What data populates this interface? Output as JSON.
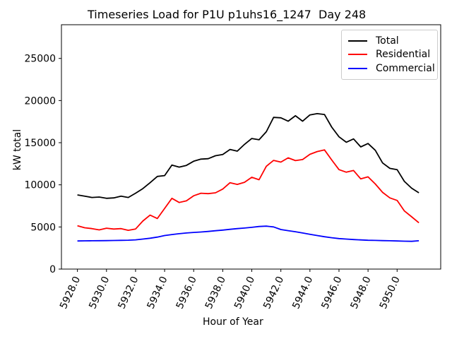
{
  "chart_data": {
    "type": "line",
    "title": "Timeseries Load for P1U p1uhs16_1247  Day 248",
    "xlabel": "Hour of Year",
    "ylabel": "kW total",
    "xlim": [
      5926.9,
      5953.0
    ],
    "ylim": [
      0,
      29000
    ],
    "grid": false,
    "legend_position": "upper right",
    "axis_color": "#000000",
    "background_color": "#ffffff",
    "legend_border_color": "#cccccc",
    "x_tick_labels": [
      "5928.0",
      "5930.0",
      "5932.0",
      "5934.0",
      "5936.0",
      "5938.0",
      "5940.0",
      "5942.0",
      "5944.0",
      "5946.0",
      "5948.0",
      "5950.0"
    ],
    "x_tick_values": [
      5928,
      5930,
      5932,
      5934,
      5936,
      5938,
      5940,
      5942,
      5944,
      5946,
      5948,
      5950
    ],
    "y_tick_labels": [
      "0",
      "5000",
      "10000",
      "15000",
      "20000",
      "25000"
    ],
    "y_tick_values": [
      0,
      5000,
      10000,
      15000,
      20000,
      25000
    ],
    "x": [
      5928.0,
      5928.5,
      5929.0,
      5929.5,
      5930.0,
      5930.5,
      5931.0,
      5931.5,
      5932.0,
      5932.5,
      5933.0,
      5933.5,
      5934.0,
      5934.5,
      5935.0,
      5935.5,
      5936.0,
      5936.5,
      5937.0,
      5937.5,
      5938.0,
      5938.5,
      5939.0,
      5939.5,
      5940.0,
      5940.5,
      5941.0,
      5941.5,
      5942.0,
      5942.5,
      5943.0,
      5943.5,
      5944.0,
      5944.5,
      5945.0,
      5945.5,
      5946.0,
      5946.5,
      5947.0,
      5947.5,
      5948.0,
      5948.5,
      5949.0,
      5949.5,
      5950.0,
      5950.5,
      5951.0,
      5951.5
    ],
    "series": [
      {
        "name": "Total",
        "color": "#000000",
        "values": [
          8800,
          8650,
          8500,
          8550,
          8400,
          8450,
          8650,
          8500,
          9000,
          9550,
          10250,
          11000,
          11100,
          12350,
          12100,
          12300,
          12800,
          13050,
          13100,
          13450,
          13600,
          14200,
          14000,
          14800,
          15500,
          15350,
          16300,
          18000,
          17950,
          17550,
          18200,
          17550,
          18300,
          18450,
          18350,
          16850,
          15700,
          15050,
          15450,
          14500,
          14900,
          14100,
          12600,
          11950,
          11800,
          10400,
          9600,
          9050
        ]
      },
      {
        "name": "Residential",
        "color": "#ff0000",
        "values": [
          5150,
          4900,
          4800,
          4650,
          4850,
          4750,
          4800,
          4600,
          4750,
          5700,
          6400,
          6000,
          7200,
          8400,
          7900,
          8100,
          8700,
          9000,
          8950,
          9050,
          9500,
          10250,
          10050,
          10300,
          10900,
          10600,
          12200,
          12900,
          12700,
          13200,
          12870,
          13000,
          13620,
          13950,
          14150,
          12950,
          11800,
          11500,
          11700,
          10700,
          10950,
          10100,
          9100,
          8450,
          8150,
          6900,
          6200,
          5500
        ]
      },
      {
        "name": "Commercial",
        "color": "#0000ff",
        "values": [
          3340,
          3350,
          3360,
          3370,
          3380,
          3395,
          3410,
          3430,
          3470,
          3560,
          3660,
          3800,
          3980,
          4100,
          4200,
          4280,
          4350,
          4400,
          4470,
          4550,
          4630,
          4720,
          4800,
          4870,
          4950,
          5050,
          5100,
          5000,
          4690,
          4560,
          4430,
          4280,
          4130,
          3980,
          3840,
          3720,
          3620,
          3560,
          3500,
          3460,
          3420,
          3400,
          3380,
          3360,
          3340,
          3310,
          3290,
          3360
        ]
      }
    ]
  }
}
